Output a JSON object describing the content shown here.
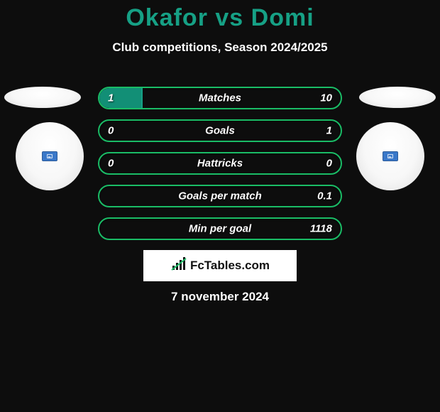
{
  "header": {
    "title": "Okafor vs Domi",
    "title_color": "#16a085",
    "subtitle": "Club competitions, Season 2024/2025"
  },
  "colors": {
    "green_border": "#1abc66",
    "green_fill": "#16a553",
    "teal_border": "#16a085",
    "teal_fill": "#128f76",
    "background": "#0d0d0d",
    "badge_flag": "#3a78c9"
  },
  "bars": [
    {
      "label": "Matches",
      "left_val": "1",
      "right_val": "10",
      "left_pct": 18,
      "right_pct": 0
    },
    {
      "label": "Goals",
      "left_val": "0",
      "right_val": "1",
      "left_pct": 0,
      "right_pct": 0
    },
    {
      "label": "Hattricks",
      "left_val": "0",
      "right_val": "0",
      "left_pct": 0,
      "right_pct": 0
    },
    {
      "label": "Goals per match",
      "left_val": "",
      "right_val": "0.1",
      "left_pct": 0,
      "right_pct": 0
    },
    {
      "label": "Min per goal",
      "left_val": "",
      "right_val": "1118",
      "left_pct": 0,
      "right_pct": 0
    }
  ],
  "footer": {
    "logo_text": "FcTables.com",
    "date": "7 november 2024"
  }
}
